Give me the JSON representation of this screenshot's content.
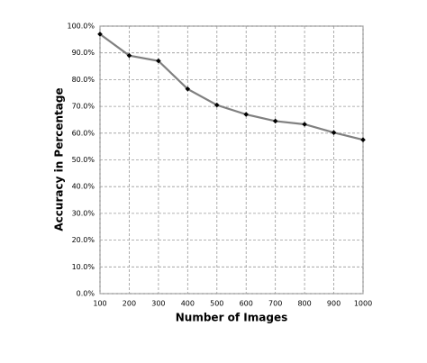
{
  "chart_data": {
    "type": "line",
    "x_label": "Number of Images",
    "y_label": "Accuracy in Percentage",
    "x": [
      100,
      200,
      300,
      400,
      500,
      600,
      700,
      800,
      900,
      1000
    ],
    "series": [
      {
        "color": "#808080",
        "marker_color": "#000000",
        "values": [
          97,
          89,
          87,
          76.5,
          70.5,
          67,
          64.5,
          63.3,
          60.2,
          57.5
        ]
      }
    ],
    "xlim": [
      100,
      1000
    ],
    "xticks": [
      100,
      200,
      300,
      400,
      500,
      600,
      700,
      800,
      900,
      1000
    ],
    "ylim": [
      0,
      100
    ],
    "yticks": [
      {
        "value": 0,
        "label": "0.0%"
      },
      {
        "value": 10,
        "label": "10.0%"
      },
      {
        "value": 20,
        "label": "20.0%"
      },
      {
        "value": 30,
        "label": "30.0%"
      },
      {
        "value": 40,
        "label": "40.0%"
      },
      {
        "value": 50,
        "label": "50.0%"
      },
      {
        "value": 60,
        "label": "60.0%"
      },
      {
        "value": 70,
        "label": "70.0%"
      },
      {
        "value": 80,
        "label": "80.0%"
      },
      {
        "value": 90,
        "label": "90.0%"
      },
      {
        "value": 100,
        "label": "100.0%"
      }
    ],
    "grid": true
  }
}
